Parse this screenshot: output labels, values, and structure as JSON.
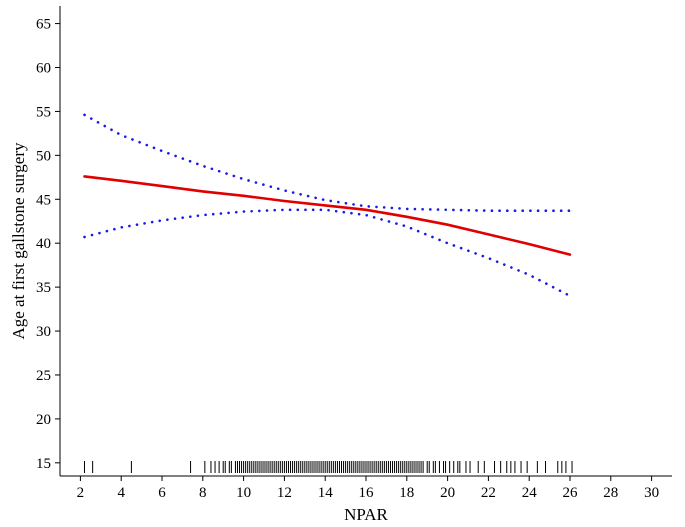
{
  "chart_data": {
    "type": "line",
    "xlabel": "NPAR",
    "ylabel": "Age at first gallstone surgery",
    "xlim": [
      1,
      31
    ],
    "ylim": [
      13.5,
      67
    ],
    "xticks": [
      2,
      4,
      6,
      8,
      10,
      12,
      14,
      16,
      18,
      20,
      22,
      24,
      26,
      28,
      30
    ],
    "yticks": [
      15,
      20,
      25,
      30,
      35,
      40,
      45,
      50,
      55,
      60,
      65
    ],
    "grid": false,
    "legend": "none",
    "colors": {
      "fit": "#e00000",
      "ci": "#1a1ae6",
      "rug": "#000000",
      "axis": "#000000"
    },
    "series": [
      {
        "role": "fit",
        "style": "solid",
        "x": [
          2.2,
          4,
          6,
          8,
          10,
          12,
          14,
          16,
          18,
          20,
          22,
          24,
          26
        ],
        "y": [
          47.6,
          47.1,
          46.5,
          45.9,
          45.4,
          44.8,
          44.3,
          43.8,
          43.0,
          42.1,
          41.0,
          39.9,
          38.7
        ]
      },
      {
        "role": "upper_ci",
        "style": "dotted",
        "x": [
          2.2,
          4,
          6,
          8,
          10,
          12,
          14,
          16,
          18,
          20,
          22,
          24,
          26
        ],
        "y": [
          54.6,
          52.3,
          50.5,
          48.8,
          47.3,
          46.0,
          44.9,
          44.2,
          43.9,
          43.8,
          43.7,
          43.7,
          43.7
        ]
      },
      {
        "role": "lower_ci",
        "style": "dotted",
        "x": [
          2.2,
          4,
          6,
          8,
          10,
          12,
          14,
          16,
          18,
          20,
          22,
          24,
          26
        ],
        "y": [
          40.7,
          41.8,
          42.6,
          43.2,
          43.6,
          43.8,
          43.8,
          43.2,
          41.9,
          40.0,
          38.3,
          36.4,
          34.0
        ]
      }
    ],
    "rug_x": [
      2.2,
      2.6,
      4.5,
      7.4,
      8.1,
      8.4,
      8.6,
      8.8,
      9.0,
      9.1,
      9.3,
      9.4,
      9.6,
      9.7,
      9.8,
      9.9,
      10.0,
      10.1,
      10.2,
      10.3,
      10.4,
      10.5,
      10.6,
      10.7,
      10.8,
      10.9,
      11.0,
      11.1,
      11.2,
      11.3,
      11.4,
      11.5,
      11.6,
      11.7,
      11.8,
      11.9,
      12.0,
      12.1,
      12.2,
      12.3,
      12.4,
      12.5,
      12.6,
      12.7,
      12.8,
      12.9,
      13.0,
      13.1,
      13.2,
      13.3,
      13.4,
      13.5,
      13.6,
      13.7,
      13.8,
      13.9,
      14.0,
      14.1,
      14.2,
      14.3,
      14.4,
      14.5,
      14.6,
      14.7,
      14.8,
      14.9,
      15.0,
      15.1,
      15.2,
      15.3,
      15.4,
      15.5,
      15.6,
      15.7,
      15.8,
      15.9,
      16.0,
      16.1,
      16.2,
      16.3,
      16.4,
      16.5,
      16.6,
      16.7,
      16.8,
      16.9,
      17.0,
      17.1,
      17.2,
      17.3,
      17.4,
      17.5,
      17.6,
      17.7,
      17.8,
      17.9,
      18.0,
      18.1,
      18.2,
      18.3,
      18.4,
      18.5,
      18.6,
      18.7,
      18.8,
      19.0,
      19.1,
      19.3,
      19.4,
      19.6,
      19.8,
      19.9,
      20.1,
      20.3,
      20.5,
      20.6,
      20.9,
      21.1,
      21.5,
      21.8,
      22.3,
      22.6,
      22.9,
      23.1,
      23.3,
      23.6,
      23.9,
      24.4,
      24.8,
      25.4,
      25.6,
      25.8,
      26.1
    ]
  }
}
